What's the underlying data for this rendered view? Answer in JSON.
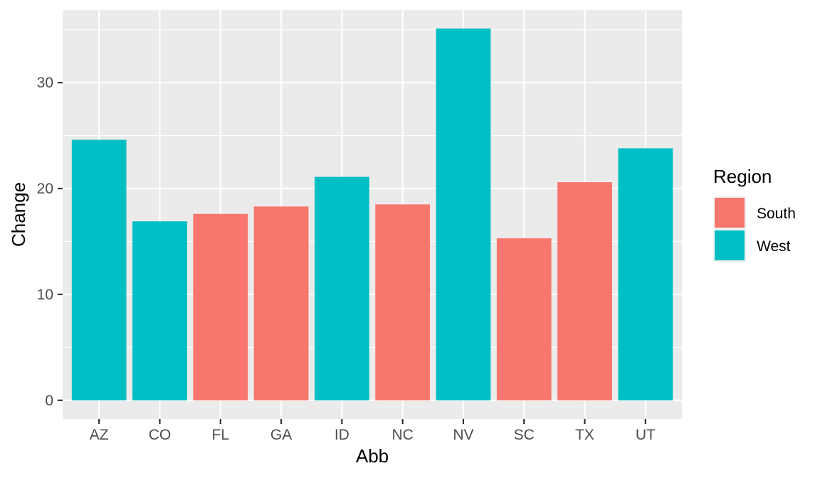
{
  "chart_data": {
    "type": "bar",
    "categories": [
      "AZ",
      "CO",
      "FL",
      "GA",
      "ID",
      "NC",
      "NV",
      "SC",
      "TX",
      "UT"
    ],
    "values": [
      24.6,
      16.9,
      17.6,
      18.3,
      21.1,
      18.5,
      35.1,
      15.3,
      20.6,
      23.8
    ],
    "groups": [
      "West",
      "West",
      "South",
      "South",
      "West",
      "South",
      "West",
      "South",
      "South",
      "West"
    ],
    "xlabel": "Abb",
    "ylabel": "Change",
    "ylim": [
      -1.76,
      36.86
    ],
    "yticks": [
      0,
      10,
      20,
      30
    ],
    "ytick_labels": [
      "0",
      "10",
      "20",
      "30"
    ],
    "grid": true,
    "legend": {
      "title": "Region",
      "position": "right",
      "entries": [
        {
          "name": "South",
          "color": "#F8766D"
        },
        {
          "name": "West",
          "color": "#00BFC4"
        }
      ]
    },
    "colors": {
      "South": "#F8766D",
      "West": "#00BFC4",
      "panel": "#EBEBEB",
      "grid": "#FFFFFF"
    }
  }
}
